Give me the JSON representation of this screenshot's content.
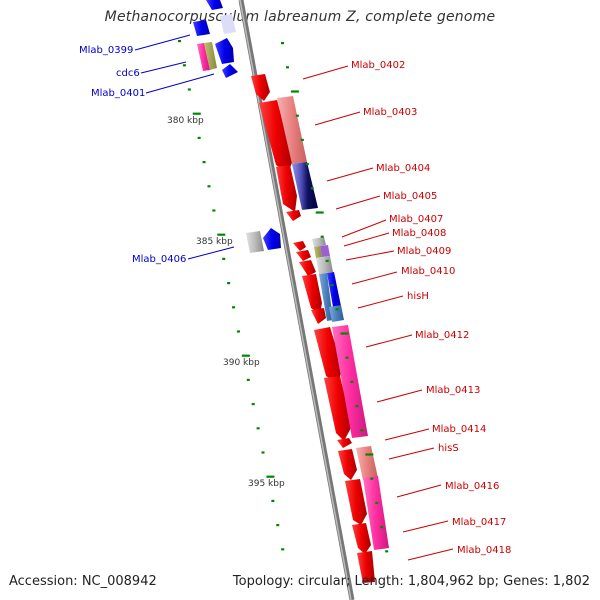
{
  "title": "Methanocorpusculum labreanum Z, complete genome",
  "accession": "Accession: NC_008942",
  "topology": "Topology: circular; Length: 1,804,962 bp; Genes: 1,802",
  "colors": {
    "backbone": "#888888",
    "forward_strand": "#0000ff",
    "reverse_strand": "#ff0000",
    "tick": "#007700",
    "left_label": "#0000cc",
    "right_label": "#cc0000"
  },
  "ticks": [
    {
      "label": "380 kbp"
    },
    {
      "label": "385 kbp"
    },
    {
      "label": "390 kbp"
    },
    {
      "label": "395 kbp"
    }
  ],
  "left_genes": [
    {
      "label": "Mlab_0399"
    },
    {
      "label": "cdc6"
    },
    {
      "label": "Mlab_0401"
    },
    {
      "label": "Mlab_0406"
    }
  ],
  "right_genes": [
    {
      "label": "Mlab_0402"
    },
    {
      "label": "Mlab_0403"
    },
    {
      "label": "Mlab_0404"
    },
    {
      "label": "Mlab_0405"
    },
    {
      "label": "Mlab_0407"
    },
    {
      "label": "Mlab_0408"
    },
    {
      "label": "Mlab_0409"
    },
    {
      "label": "Mlab_0410"
    },
    {
      "label": "hisH"
    },
    {
      "label": "Mlab_0412"
    },
    {
      "label": "Mlab_0413"
    },
    {
      "label": "Mlab_0414"
    },
    {
      "label": "hisS"
    },
    {
      "label": "Mlab_0416"
    },
    {
      "label": "Mlab_0417"
    },
    {
      "label": "Mlab_0418"
    }
  ]
}
